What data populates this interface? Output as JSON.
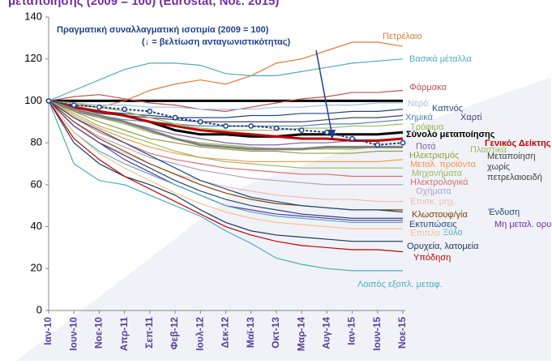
{
  "chart_data": {
    "type": "line",
    "title": "μεταποίησης (2009 = 100) (Eurostat, Νοε. 2015)",
    "annotation": "(↓ = βελτίωση ανταγωνιστικότητας)",
    "categories": [
      "Ιαν-10",
      "Ιουν-10",
      "Νοε-10",
      "Απρ-11",
      "Σεπ-11",
      "Φεβ-12",
      "Ιουλ-12",
      "Δεκ-12",
      "Μαϊ-13",
      "Οκτ-13",
      "Μαρ-14",
      "Αυγ-14",
      "Ιαν-15",
      "Ιουν-15",
      "Νοε-15"
    ],
    "ylim": [
      0,
      140
    ],
    "yticks": [
      0,
      20,
      40,
      60,
      80,
      100,
      120,
      140
    ],
    "reference_line": 100,
    "series": [
      {
        "name": "Πετρέλαιο",
        "color": "#e07b39",
        "values": [
          100,
          98,
          97,
          100,
          105,
          108,
          110,
          108,
          112,
          118,
          120,
          124,
          128,
          128,
          126
        ]
      },
      {
        "name": "Βασικά μέταλλα",
        "color": "#4bacc6",
        "values": [
          100,
          105,
          110,
          115,
          118,
          118,
          117,
          113,
          112,
          112,
          114,
          116,
          118,
          119,
          120
        ]
      },
      {
        "name": "Φάρμακα",
        "color": "#c0504d",
        "values": [
          100,
          102,
          103,
          101,
          99,
          98,
          96,
          95,
          97,
          99,
          101,
          102,
          104,
          104,
          105
        ]
      },
      {
        "name": "Νερό",
        "color": "#9dc3e6",
        "values": [
          100,
          99,
          98,
          98,
          97,
          97,
          96,
          96,
          96,
          97,
          97,
          98,
          98,
          99,
          99
        ]
      },
      {
        "name": "Καπνός",
        "color": "#1f497d",
        "values": [
          100,
          97,
          95,
          94,
          93,
          92,
          92,
          92,
          93,
          93,
          94,
          94,
          95,
          95,
          96
        ]
      },
      {
        "name": "Χαρτί",
        "color": "#3f3f6f",
        "values": [
          100,
          97,
          94,
          93,
          92,
          91,
          90,
          90,
          90,
          90,
          90,
          91,
          92,
          92,
          93
        ]
      },
      {
        "name": "Χημικά",
        "color": "#4f81bd",
        "values": [
          100,
          96,
          93,
          91,
          90,
          89,
          88,
          88,
          88,
          88,
          88,
          89,
          89,
          90,
          91
        ]
      },
      {
        "name": "Τρόφιμα",
        "color": "#9bbb59",
        "values": [
          100,
          99,
          97,
          95,
          92,
          89,
          87,
          86,
          86,
          86,
          87,
          87,
          88,
          88,
          89
        ]
      },
      {
        "name": "Σύνολο μεταποίησης",
        "color": "#000000",
        "width": 3,
        "values": [
          100,
          97,
          95,
          93,
          90,
          86,
          84,
          84,
          83,
          83,
          84,
          84,
          84,
          84,
          85
        ]
      },
      {
        "name": "Ποτά",
        "color": "#8064a2",
        "values": [
          100,
          95,
          92,
          90,
          87,
          84,
          82,
          80,
          79,
          79,
          80,
          80,
          81,
          81,
          82
        ]
      },
      {
        "name": "Γενικός Δείκτης",
        "color": "#c00000",
        "width": 3,
        "values": [
          100,
          97,
          95,
          93,
          90,
          88,
          86,
          85,
          84,
          83,
          82,
          82,
          81,
          81,
          82
        ]
      },
      {
        "name": "Πλαστικά",
        "color": "#9bbb59",
        "values": [
          100,
          96,
          92,
          89,
          85,
          82,
          80,
          79,
          78,
          77,
          77,
          77,
          77,
          78,
          78
        ]
      },
      {
        "name": "Ηλεκτρισμός",
        "color": "#92a040",
        "values": [
          100,
          95,
          90,
          86,
          82,
          80,
          78,
          77,
          76,
          76,
          75,
          75,
          75,
          76,
          76
        ]
      },
      {
        "name": "Μεταποίηση χωρίς πετρελαιοειδή",
        "color": "#808080",
        "width": 3,
        "values": [
          100,
          96,
          93,
          90,
          86,
          82,
          79,
          78,
          77,
          77,
          77,
          78,
          78,
          78,
          78
        ]
      },
      {
        "name": "Μεταλ. προϊόντα",
        "color": "#f79646",
        "values": [
          100,
          93,
          87,
          82,
          78,
          75,
          73,
          72,
          71,
          71,
          71,
          71,
          71,
          71,
          72
        ]
      },
      {
        "name": "Μηχανήματα",
        "color": "#9bbb59",
        "values": [
          100,
          94,
          88,
          84,
          80,
          76,
          73,
          71,
          70,
          69,
          68,
          68,
          68,
          68,
          68
        ]
      },
      {
        "name": "Ηλεκτρολογικά",
        "color": "#d9706c",
        "values": [
          100,
          92,
          85,
          80,
          75,
          72,
          70,
          68,
          67,
          66,
          65,
          65,
          64,
          64,
          64
        ]
      },
      {
        "name": "Οχήματα",
        "color": "#b3a2c7",
        "values": [
          100,
          90,
          83,
          78,
          73,
          70,
          67,
          65,
          63,
          62,
          61,
          60,
          60,
          60,
          60
        ]
      },
      {
        "name": "Επισκ. μηχ.",
        "color": "#f2b8b5",
        "values": [
          100,
          88,
          80,
          75,
          70,
          65,
          62,
          59,
          57,
          55,
          54,
          53,
          53,
          52,
          52
        ]
      },
      {
        "name": "Κλωστουφ/γία",
        "color": "#7f3f00",
        "values": [
          100,
          90,
          82,
          76,
          70,
          65,
          60,
          56,
          53,
          51,
          50,
          49,
          48,
          48,
          48
        ]
      },
      {
        "name": "Ένδυση",
        "color": "#1f497d",
        "values": [
          100,
          92,
          86,
          80,
          74,
          68,
          62,
          58,
          54,
          52,
          50,
          49,
          48,
          48,
          47
        ]
      },
      {
        "name": "Εκτυπώσεις",
        "color": "#1f497d",
        "values": [
          100,
          88,
          80,
          74,
          68,
          62,
          57,
          53,
          50,
          48,
          46,
          45,
          44,
          44,
          44
        ]
      },
      {
        "name": "Μη μεταλ. ορυκτά",
        "color": "#7030a0",
        "values": [
          100,
          88,
          80,
          72,
          66,
          60,
          55,
          50,
          48,
          46,
          45,
          44,
          43,
          43,
          43
        ]
      },
      {
        "name": "Ξύλο",
        "color": "#4bacc6",
        "values": [
          100,
          85,
          76,
          70,
          65,
          60,
          55,
          50,
          47,
          45,
          44,
          43,
          42,
          42,
          42
        ]
      },
      {
        "name": "Έπιπλα",
        "color": "#fac090",
        "values": [
          100,
          85,
          75,
          68,
          62,
          56,
          51,
          47,
          44,
          42,
          41,
          40,
          39,
          39,
          39
        ]
      },
      {
        "name": "Ορυχεία, λατομεία",
        "color": "#17375e",
        "values": [
          100,
          80,
          70,
          64,
          60,
          55,
          48,
          42,
          38,
          36,
          35,
          34,
          33,
          33,
          33
        ]
      },
      {
        "name": "Υπόδηση",
        "color": "#c00000",
        "values": [
          100,
          82,
          72,
          64,
          58,
          52,
          46,
          40,
          36,
          33,
          31,
          30,
          29,
          29,
          28
        ]
      },
      {
        "name": "Λοιπός εξοπλ. μεταφ.",
        "color": "#4bacc6",
        "values": [
          100,
          70,
          62,
          60,
          55,
          50,
          45,
          38,
          32,
          25,
          22,
          20,
          19,
          19,
          19
        ]
      },
      {
        "name": "Πραγματική συναλλαγματική ισοτιμία (2009 = 100)",
        "color": "#1f3f8f",
        "width": 2,
        "markers": true,
        "values": [
          100,
          98,
          97,
          96,
          95,
          92,
          90,
          88,
          88,
          87,
          86,
          85,
          82,
          79,
          80
        ]
      }
    ]
  }
}
